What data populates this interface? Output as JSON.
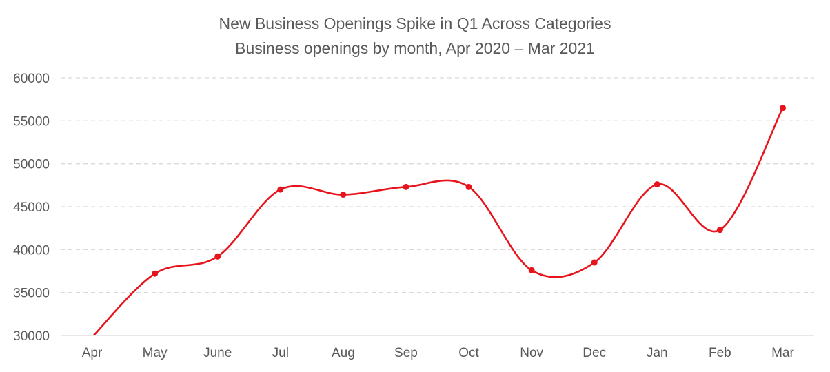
{
  "chart_data": {
    "type": "line",
    "title": "New Business Openings Spike in Q1 Across Categories",
    "subtitle": "Business openings by month, Apr 2020 – Mar 2021",
    "categories": [
      "Apr",
      "May",
      "June",
      "Jul",
      "Aug",
      "Sep",
      "Oct",
      "Nov",
      "Dec",
      "Jan",
      "Feb",
      "Mar"
    ],
    "series": [
      {
        "values": [
          29800,
          37200,
          39200,
          47000,
          46400,
          47300,
          47300,
          37600,
          38500,
          47600,
          42300,
          56500
        ],
        "color": "#e8141c"
      }
    ],
    "yticks": [
      30000,
      35000,
      40000,
      45000,
      50000,
      55000,
      60000
    ],
    "ylim": [
      30000,
      60000
    ],
    "xlabel": "",
    "ylabel": "",
    "grid": true,
    "legend": "none",
    "smooth": true
  }
}
